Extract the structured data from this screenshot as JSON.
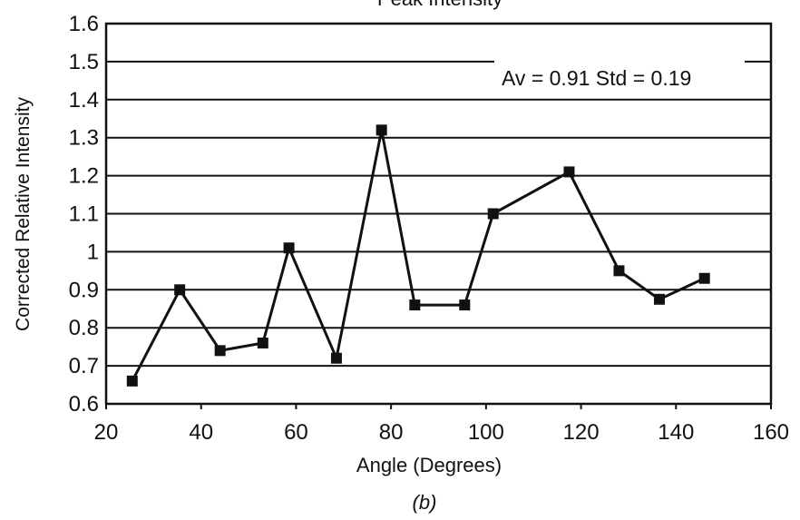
{
  "chart_data": {
    "type": "line",
    "title": "Peak Intensity",
    "xlabel": "Angle (Degrees)",
    "ylabel": "Corrected Relative Intensity",
    "xlim": [
      20,
      160
    ],
    "ylim": [
      0.6,
      1.6
    ],
    "xticks": [
      20,
      40,
      60,
      80,
      100,
      120,
      140,
      160
    ],
    "yticks": [
      "0.6",
      "0.7",
      "0.8",
      "0.9",
      "1",
      "1.1",
      "1.2",
      "1.3",
      "1.4",
      "1.5",
      "1.6"
    ],
    "grid": "horizontal",
    "annotation": "Av = 0.91 Std = 0.19",
    "caption": "(b)",
    "series": [
      {
        "marker": "square",
        "color": "#111111",
        "x": [
          25.5,
          35.5,
          44,
          53,
          58.5,
          68.5,
          78,
          85,
          95.5,
          101.5,
          117.5,
          128,
          136.5,
          146
        ],
        "y": [
          0.66,
          0.9,
          0.74,
          0.76,
          1.01,
          0.72,
          1.32,
          0.86,
          0.86,
          1.1,
          1.21,
          0.95,
          0.875,
          0.93
        ]
      }
    ]
  }
}
